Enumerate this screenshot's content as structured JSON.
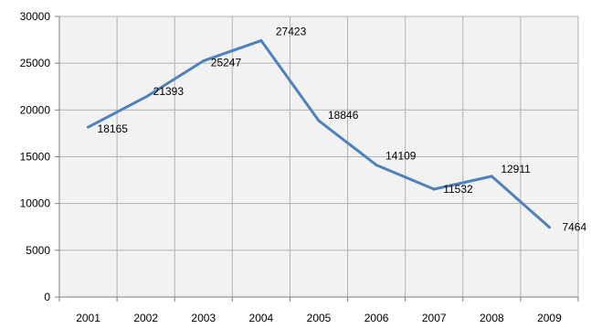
{
  "chart_data": {
    "type": "line",
    "title": "",
    "xlabel": "",
    "ylabel": "",
    "categories": [
      "2001",
      "2002",
      "2003",
      "2004",
      "2005",
      "2006",
      "2007",
      "2008",
      "2009"
    ],
    "series": [
      {
        "values": [
          18165,
          21393,
          25247,
          27423,
          18846,
          14109,
          11532,
          12911,
          7464
        ]
      }
    ],
    "ylim": [
      0,
      30000
    ],
    "yticks": [
      0,
      5000,
      10000,
      15000,
      20000,
      25000,
      30000
    ],
    "grid": true,
    "legend": "none",
    "line_color": "#4f81bd",
    "plot_background": "#f2f2f2"
  }
}
